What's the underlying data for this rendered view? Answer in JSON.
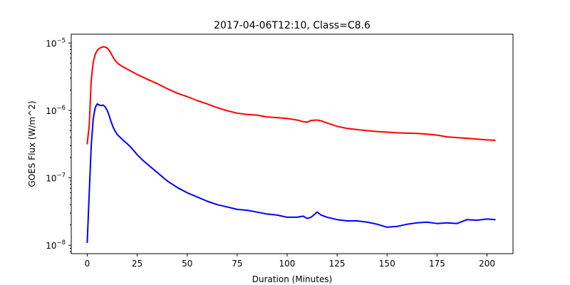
{
  "chart_data": {
    "type": "line",
    "title": "2017-04-06T12:10, Class=C8.6",
    "xlabel": "Duration (Minutes)",
    "ylabel": "GOES Flux (W/m^2)",
    "xlim": [
      -8,
      213
    ],
    "ylim": [
      7.5e-09,
      1.35e-05
    ],
    "yscale": "log",
    "grid": false,
    "xticks": [
      0,
      25,
      50,
      75,
      100,
      125,
      150,
      175,
      200
    ],
    "xtick_labels": [
      "0",
      "25",
      "50",
      "75",
      "100",
      "125",
      "150",
      "175",
      "200"
    ],
    "yticks": [
      1e-08,
      1e-07,
      1e-06,
      1e-05
    ],
    "ytick_labels": [
      {
        "base": "10",
        "exp": "−8"
      },
      {
        "base": "10",
        "exp": "−7"
      },
      {
        "base": "10",
        "exp": "−6"
      },
      {
        "base": "10",
        "exp": "−5"
      }
    ],
    "series": [
      {
        "color": "#ff0000",
        "x": [
          0,
          1,
          2,
          3,
          4,
          5,
          6,
          7,
          8,
          9,
          10,
          11,
          12,
          13,
          14,
          15,
          16,
          18,
          20,
          22,
          25,
          28,
          30,
          35,
          40,
          45,
          50,
          55,
          60,
          65,
          70,
          75,
          80,
          85,
          90,
          95,
          100,
          105,
          108,
          110,
          112,
          115,
          117,
          120,
          125,
          130,
          135,
          140,
          145,
          150,
          155,
          160,
          165,
          170,
          175,
          180,
          185,
          190,
          195,
          200,
          204
        ],
        "y": [
          3.2e-07,
          6e-07,
          2.8e-06,
          5.2e-06,
          6.8e-06,
          7.8e-06,
          8.3e-06,
          8.6e-06,
          8.8e-06,
          8.7e-06,
          8.4e-06,
          7.8e-06,
          6.9e-06,
          6.1e-06,
          5.5e-06,
          5.1e-06,
          4.8e-06,
          4.4e-06,
          4.1e-06,
          3.8e-06,
          3.4e-06,
          3.1e-06,
          2.9e-06,
          2.5e-06,
          2.1e-06,
          1.8e-06,
          1.6e-06,
          1.4e-06,
          1.25e-06,
          1.1e-06,
          9.9e-07,
          9.1e-07,
          8.7e-07,
          8.5e-07,
          8e-07,
          7.8e-07,
          7.6e-07,
          7.2e-07,
          6.8e-07,
          6.7e-07,
          7.1e-07,
          7.2e-07,
          7e-07,
          6.5e-07,
          5.8e-07,
          5.4e-07,
          5.2e-07,
          5e-07,
          4.85e-07,
          4.75e-07,
          4.65e-07,
          4.6e-07,
          4.55e-07,
          4.45e-07,
          4.3e-07,
          4.05e-07,
          3.95e-07,
          3.85e-07,
          3.75e-07,
          3.65e-07,
          3.6e-07
        ]
      },
      {
        "color": "#0000ff",
        "x": [
          0,
          1,
          2,
          3,
          4,
          5,
          6,
          7,
          8,
          9,
          10,
          11,
          12,
          13,
          14,
          15,
          16,
          18,
          20,
          22,
          25,
          28,
          30,
          35,
          40,
          45,
          50,
          55,
          60,
          65,
          70,
          75,
          80,
          85,
          90,
          95,
          100,
          105,
          108,
          110,
          112,
          115,
          117,
          120,
          125,
          130,
          135,
          140,
          145,
          150,
          155,
          160,
          165,
          170,
          175,
          180,
          185,
          190,
          195,
          200,
          204
        ],
        "y": [
          1.1e-08,
          6e-08,
          3e-07,
          7.5e-07,
          1.1e-06,
          1.25e-06,
          1.2e-06,
          1.18e-06,
          1.2e-06,
          1.12e-06,
          1e-06,
          8.3e-07,
          6.7e-07,
          5.6e-07,
          4.9e-07,
          4.4e-07,
          4.1e-07,
          3.6e-07,
          3.2e-07,
          2.8e-07,
          2.2e-07,
          1.8e-07,
          1.6e-07,
          1.2e-07,
          9e-08,
          7.2e-08,
          6e-08,
          5.2e-08,
          4.5e-08,
          4e-08,
          3.7e-08,
          3.4e-08,
          3.3e-08,
          3.1e-08,
          2.9e-08,
          2.8e-08,
          2.6e-08,
          2.6e-08,
          2.7e-08,
          2.5e-08,
          2.6e-08,
          3.1e-08,
          2.8e-08,
          2.6e-08,
          2.4e-08,
          2.3e-08,
          2.3e-08,
          2.2e-08,
          2.05e-08,
          1.85e-08,
          1.9e-08,
          2.05e-08,
          2.15e-08,
          2.2e-08,
          2.1e-08,
          2.15e-08,
          2.1e-08,
          2.4e-08,
          2.35e-08,
          2.45e-08,
          2.4e-08
        ]
      }
    ]
  }
}
